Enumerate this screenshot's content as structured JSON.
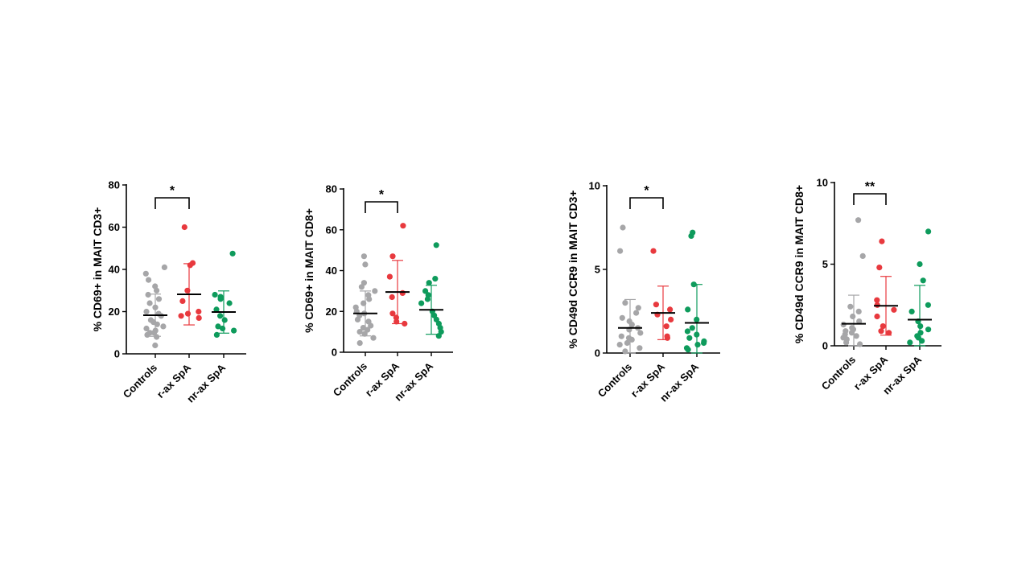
{
  "colors": {
    "Controls": "#a6a6a8",
    "r-ax SpA": "#e8393e",
    "nr-ax SpA": "#0e9b5c",
    "axis": "#000000"
  },
  "chart_data": [
    {
      "type": "scatter",
      "ylabel": "% CD69+ in MAIT CD3+",
      "ylim": [
        0,
        80
      ],
      "yticks": [
        0,
        20,
        40,
        60,
        80
      ],
      "categories": [
        "Controls",
        "r-ax SpA",
        "nr-ax SpA"
      ],
      "series": [
        {
          "values": [
            4,
            8,
            9,
            10,
            10,
            11,
            12,
            13,
            14,
            15,
            16,
            18,
            19,
            20,
            22,
            24,
            26,
            28,
            30,
            32,
            35,
            38,
            41
          ],
          "mean": 18.3,
          "sd": 10
        },
        {
          "values": [
            17,
            18,
            19,
            20,
            25,
            30,
            42,
            43,
            60
          ],
          "mean": 28.2,
          "sd": 14.5
        },
        {
          "values": [
            9,
            11,
            12,
            13,
            16,
            18,
            21,
            24,
            26,
            27,
            28,
            47.5
          ],
          "mean": 19.8,
          "sd": 10
        }
      ],
      "significance": [
        {
          "from": 0,
          "to": 1,
          "label": "*"
        }
      ]
    },
    {
      "type": "scatter",
      "ylabel": "% CD69+ in MAIT CD8+",
      "ylim": [
        0,
        80
      ],
      "yticks": [
        0,
        20,
        40,
        60,
        80
      ],
      "categories": [
        "Controls",
        "r-ax SpA",
        "nr-ax SpA"
      ],
      "series": [
        {
          "values": [
            4.5,
            7,
            9,
            10,
            11,
            12,
            13,
            15,
            16,
            18,
            19,
            20,
            22,
            24,
            26,
            28,
            30,
            32,
            34,
            43,
            47
          ],
          "mean": 19,
          "sd": 11
        },
        {
          "values": [
            14,
            15,
            17,
            19,
            27,
            29,
            37,
            47,
            62
          ],
          "mean": 29.5,
          "sd": 15.5
        },
        {
          "values": [
            8,
            10,
            12,
            14,
            16,
            18,
            20,
            24,
            26,
            28,
            30,
            34,
            36,
            52.5
          ],
          "mean": 20.8,
          "sd": 12
        }
      ],
      "significance": [
        {
          "from": 0,
          "to": 1,
          "label": "*"
        }
      ]
    },
    {
      "type": "scatter",
      "ylabel": "% CD49d CCR9 in MAIT CD3+",
      "ylim": [
        0,
        10
      ],
      "yticks": [
        0,
        5,
        10
      ],
      "categories": [
        "Controls",
        "r-ax SpA",
        "nr-ax SpA"
      ],
      "series": [
        {
          "values": [
            0.1,
            0.3,
            0.5,
            0.6,
            0.8,
            0.9,
            1.0,
            1.2,
            1.4,
            1.5,
            1.7,
            1.9,
            2.1,
            2.4,
            2.7,
            3.0,
            6.1,
            7.5
          ],
          "mean": 1.5,
          "sd": 1.7
        },
        {
          "values": [
            0.9,
            1.0,
            1.6,
            2.0,
            2.3,
            2.6,
            2.9,
            6.1
          ],
          "mean": 2.4,
          "sd": 1.6
        },
        {
          "values": [
            0.2,
            0.3,
            0.5,
            0.6,
            0.7,
            0.9,
            1.1,
            1.3,
            1.5,
            2.0,
            2.6,
            4.1,
            7.0,
            7.2
          ],
          "mean": 1.8,
          "sd": 2.3
        }
      ],
      "significance": [
        {
          "from": 0,
          "to": 1,
          "label": "*"
        }
      ]
    },
    {
      "type": "scatter",
      "ylabel": "% CD49d CCR9 in MAIT CD8+",
      "ylim": [
        0,
        10
      ],
      "yticks": [
        0,
        5,
        10
      ],
      "categories": [
        "Controls",
        "r-ax SpA",
        "nr-ax SpA"
      ],
      "series": [
        {
          "values": [
            0.1,
            0.2,
            0.4,
            0.5,
            0.6,
            0.7,
            0.8,
            0.9,
            1.0,
            1.1,
            1.3,
            1.5,
            1.8,
            2.1,
            2.4,
            5.5,
            7.7
          ],
          "mean": 1.35,
          "sd": 1.75
        },
        {
          "values": [
            0.8,
            0.9,
            1.2,
            1.8,
            2.2,
            2.5,
            2.8,
            4.8,
            6.4
          ],
          "mean": 2.45,
          "sd": 1.8
        },
        {
          "values": [
            0.2,
            0.3,
            0.5,
            0.6,
            0.8,
            1.0,
            1.2,
            1.5,
            2.1,
            2.5,
            4.0,
            5.0,
            7.0
          ],
          "mean": 1.6,
          "sd": 2.1
        }
      ],
      "significance": [
        {
          "from": 0,
          "to": 1,
          "label": "**"
        }
      ]
    }
  ]
}
